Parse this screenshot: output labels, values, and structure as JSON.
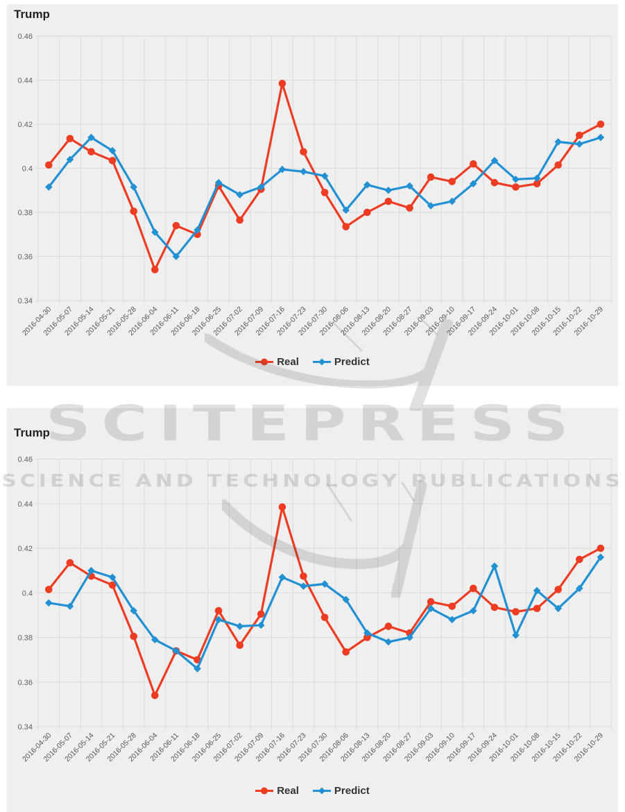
{
  "watermark": {
    "line1": "SCITEPRESS",
    "line2": "SCIENCE AND TECHNOLOGY PUBLICATIONS"
  },
  "colors": {
    "real": "#ee3c23",
    "predict": "#2191d3",
    "grid": "#dadada",
    "panel_bg": "#efefef",
    "axis_label": "#606060",
    "title": "#222222",
    "watermark": "#bdbdbd"
  },
  "chart_data": [
    {
      "type": "line",
      "title": "Trump",
      "ylim": [
        0.34,
        0.46
      ],
      "yticks": [
        "0.46",
        "0.44",
        "0.42",
        "0.4",
        "0.38",
        "0.36",
        "0.34"
      ],
      "grid": true,
      "legend_position": "bottom-center",
      "categories": [
        "2016-04-30",
        "2016-05-07",
        "2016-05-14",
        "2016-05-21",
        "2016-05-28",
        "2016-06-04",
        "2016-06-11",
        "2016-06-18",
        "2016-06-25",
        "2016-07-02",
        "2016-07-09",
        "2016-07-16",
        "2016-07-23",
        "2016-07-30",
        "2016-08-06",
        "2016-08-13",
        "2016-08-20",
        "2016-08-27",
        "2016-09-03",
        "2016-09-10",
        "2016-09-17",
        "2016-09-24",
        "2016-10-01",
        "2016-10-08",
        "2016-10-15",
        "2016-10-22",
        "2016-10-29"
      ],
      "series": [
        {
          "name": "Real",
          "color_key": "real",
          "marker": "circle",
          "values": [
            0.4015,
            0.4135,
            0.4075,
            0.4035,
            0.3805,
            0.354,
            0.374,
            0.37,
            0.392,
            0.3765,
            0.3905,
            0.4385,
            0.4075,
            0.389,
            0.3735,
            0.38,
            0.385,
            0.382,
            0.396,
            0.394,
            0.402,
            0.3935,
            0.3915,
            0.393,
            0.4015,
            0.415,
            0.42
          ]
        },
        {
          "name": "Predict",
          "color_key": "predict",
          "marker": "diamond",
          "values": [
            0.3915,
            0.404,
            0.414,
            0.408,
            0.3915,
            0.371,
            0.36,
            0.372,
            0.3935,
            0.388,
            0.3915,
            0.3995,
            0.3985,
            0.3965,
            0.381,
            0.3925,
            0.39,
            0.392,
            0.383,
            0.385,
            0.393,
            0.4035,
            0.395,
            0.3955,
            0.412,
            0.411,
            0.414
          ]
        }
      ]
    },
    {
      "type": "line",
      "title": "Trump",
      "ylim": [
        0.34,
        0.46
      ],
      "yticks": [
        "0.46",
        "0.44",
        "0.42",
        "0.4",
        "0.38",
        "0.36",
        "0.34"
      ],
      "grid": true,
      "legend_position": "bottom-center",
      "categories": [
        "2016-04-30",
        "2016-05-07",
        "2016-05-14",
        "2016-05-21",
        "2016-05-28",
        "2016-06-04",
        "2016-06-11",
        "2016-06-18",
        "2016-06-25",
        "2016-07-02",
        "2016-07-09",
        "2016-07-16",
        "2016-07-23",
        "2016-07-30",
        "2016-08-06",
        "2016-08-13",
        "2016-08-20",
        "2016-08-27",
        "2016-09-03",
        "2016-09-10",
        "2016-09-17",
        "2016-09-24",
        "2016-10-01",
        "2016-10-08",
        "2016-10-15",
        "2016-10-22",
        "2016-10-29"
      ],
      "series": [
        {
          "name": "Real",
          "color_key": "real",
          "marker": "circle",
          "values": [
            0.4015,
            0.4135,
            0.4075,
            0.4035,
            0.3805,
            0.354,
            0.374,
            0.37,
            0.392,
            0.3765,
            0.3905,
            0.4385,
            0.4075,
            0.389,
            0.3735,
            0.38,
            0.385,
            0.382,
            0.396,
            0.394,
            0.402,
            0.3935,
            0.3915,
            0.393,
            0.4015,
            0.415,
            0.42
          ]
        },
        {
          "name": "Predict",
          "color_key": "predict",
          "marker": "diamond",
          "values": [
            0.3955,
            0.394,
            0.41,
            0.407,
            0.392,
            0.379,
            0.374,
            0.366,
            0.388,
            0.385,
            0.3855,
            0.407,
            0.403,
            0.404,
            0.397,
            0.382,
            0.378,
            0.38,
            0.393,
            0.388,
            0.392,
            0.412,
            0.381,
            0.401,
            0.393,
            0.402,
            0.416
          ]
        }
      ]
    }
  ]
}
